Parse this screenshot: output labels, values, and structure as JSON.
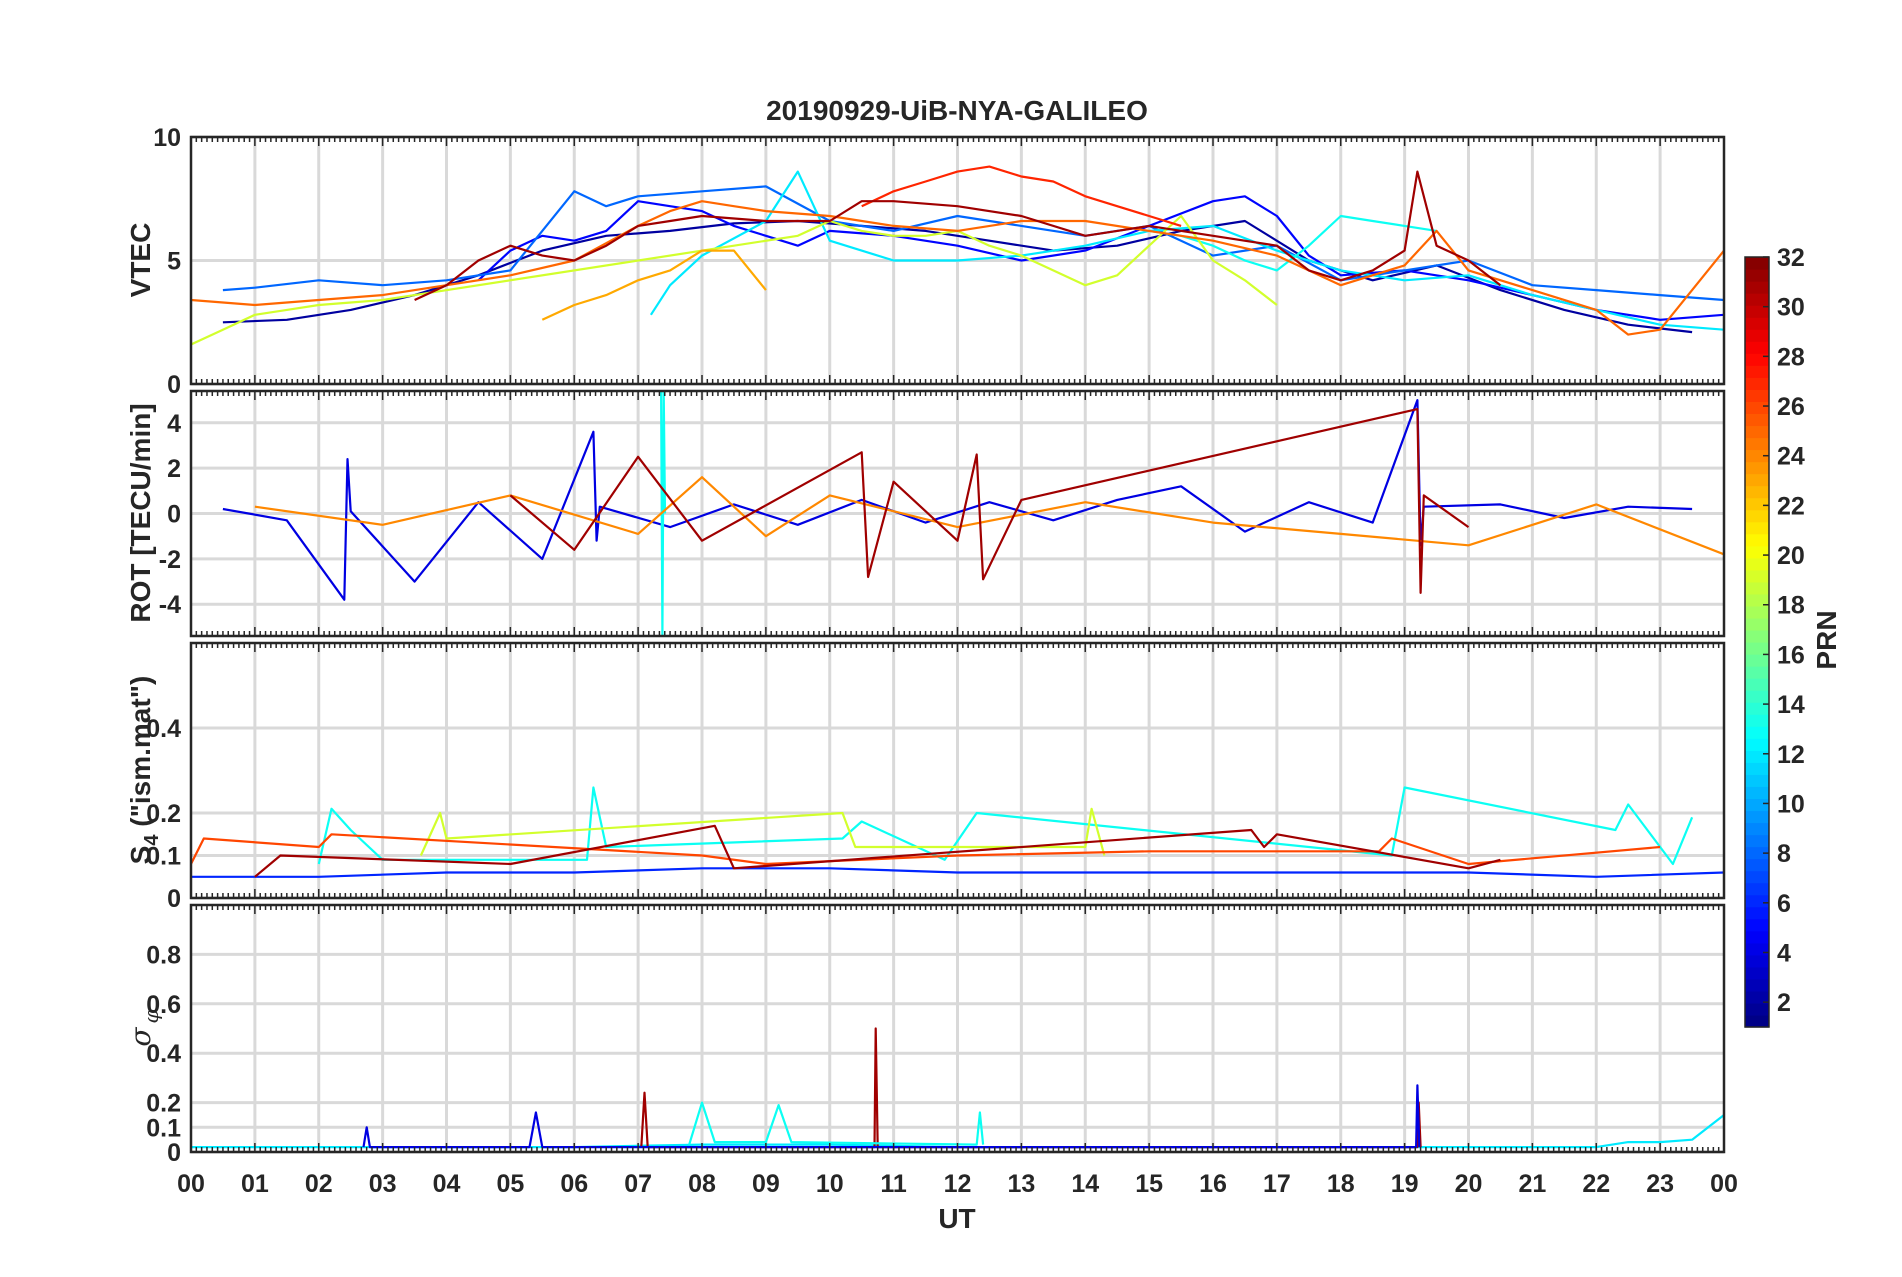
{
  "chart_data": {
    "type": "line",
    "title": "20190929-UiB-NYA-GALILEO",
    "xlabel": "UT",
    "xlim": [
      0,
      24
    ],
    "x_ticks": [
      "00",
      "01",
      "02",
      "03",
      "04",
      "05",
      "06",
      "07",
      "08",
      "09",
      "10",
      "11",
      "12",
      "13",
      "14",
      "15",
      "16",
      "17",
      "18",
      "19",
      "20",
      "21",
      "22",
      "23",
      "00"
    ],
    "grid": "on",
    "colorbar": {
      "label": "PRN",
      "range": [
        1,
        32
      ],
      "ticks": [
        "2",
        "4",
        "6",
        "8",
        "10",
        "12",
        "14",
        "16",
        "18",
        "20",
        "22",
        "24",
        "26",
        "28",
        "30",
        "32"
      ],
      "colormap": "jet",
      "placement": "right"
    },
    "panels": [
      {
        "name": "vtec",
        "ylabel": "VTEC",
        "ylim": [
          0,
          10
        ],
        "yticks": [
          "0",
          "5",
          "10"
        ],
        "series": [
          {
            "name": "PRN 2",
            "prn": 2,
            "x": [
              0.5,
              1.5,
              2.5,
              3.5,
              4.5,
              5.5,
              6.5,
              7.5,
              8.5,
              9.5,
              10.5,
              11.5,
              12.5,
              13.5,
              14.5,
              15.5,
              16.5,
              17.5,
              18.5,
              19.5,
              20.5,
              21.5,
              22.5,
              23.5
            ],
            "y": [
              2.5,
              2.6,
              3.0,
              3.6,
              4.4,
              5.4,
              6.0,
              6.2,
              6.5,
              6.6,
              6.4,
              6.2,
              5.8,
              5.4,
              5.6,
              6.2,
              6.6,
              5.0,
              4.2,
              4.8,
              3.8,
              3.0,
              2.4,
              2.1
            ]
          },
          {
            "name": "PRN 5",
            "prn": 5,
            "x": [
              4.5,
              5.0,
              5.5,
              6.0,
              6.5,
              7.0,
              7.5,
              8.0,
              8.5,
              9.0,
              9.5,
              10.0,
              11.0,
              12.0,
              13.0,
              14.0,
              15.0,
              16.0,
              16.5,
              17.0,
              17.5,
              18.0,
              19.0,
              20.0,
              21.0,
              22.0,
              23.0,
              24.0
            ],
            "y": [
              4.2,
              5.4,
              6.0,
              5.8,
              6.2,
              7.4,
              7.2,
              7.0,
              6.4,
              6.0,
              5.6,
              6.2,
              6.0,
              5.6,
              5.0,
              5.4,
              6.4,
              7.4,
              7.6,
              6.8,
              5.2,
              4.4,
              4.6,
              4.2,
              3.6,
              3.0,
              2.6,
              2.8
            ]
          },
          {
            "name": "PRN 8",
            "prn": 8,
            "x": [
              0.5,
              1.0,
              2.0,
              3.0,
              4.0,
              5.0,
              6.0,
              6.5,
              7.0,
              8.0,
              9.0,
              10.0,
              11.0,
              12.0,
              13.0,
              14.0,
              15.0,
              16.0,
              17.0,
              18.0,
              19.0,
              20.0,
              21.0,
              22.0,
              23.0,
              24.0
            ],
            "y": [
              3.8,
              3.9,
              4.2,
              4.0,
              4.2,
              4.6,
              7.8,
              7.2,
              7.6,
              7.8,
              8.0,
              6.6,
              6.2,
              6.8,
              6.4,
              6.0,
              6.4,
              5.2,
              5.6,
              4.2,
              4.6,
              5.0,
              4.0,
              3.8,
              3.6,
              3.4
            ]
          },
          {
            "name": "PRN 12",
            "prn": 12,
            "x": [
              7.2,
              7.5,
              8.0,
              9.0,
              9.5,
              10.0,
              11.0,
              12.0,
              13.0,
              14.0,
              15.0,
              16.0,
              17.0,
              18.0,
              19.0,
              20.0,
              21.0,
              22.0,
              23.0,
              24.0
            ],
            "y": [
              2.8,
              4.0,
              5.2,
              6.6,
              8.6,
              5.8,
              5.0,
              5.0,
              5.2,
              5.6,
              6.2,
              6.4,
              5.4,
              4.6,
              4.2,
              4.4,
              3.6,
              3.0,
              2.4,
              2.2
            ]
          },
          {
            "name": "PRN 13",
            "prn": 13,
            "x": [
              15.0,
              15.5,
              16.0,
              16.5,
              17.0,
              17.5,
              18.0,
              18.5,
              19.0,
              19.5
            ],
            "y": [
              6.2,
              6.0,
              5.6,
              5.0,
              4.6,
              5.6,
              6.8,
              6.6,
              6.4,
              6.2
            ]
          },
          {
            "name": "PRN 19",
            "prn": 19,
            "x": [
              0.0,
              0.5,
              1.0,
              1.5,
              2.0,
              2.5,
              3.0,
              3.5,
              9.5,
              10.0,
              10.5,
              11.0,
              11.5,
              12.0,
              12.5,
              13.0,
              14.0,
              14.5,
              15.5,
              16.0,
              16.5,
              17.0
            ],
            "y": [
              1.6,
              2.2,
              2.8,
              3.0,
              3.2,
              3.3,
              3.4,
              3.6,
              6.0,
              6.6,
              6.2,
              6.0,
              6.0,
              6.2,
              5.6,
              5.2,
              4.0,
              4.4,
              6.8,
              5.0,
              4.2,
              3.2
            ]
          },
          {
            "name": "PRN 23",
            "prn": 23,
            "x": [
              5.5,
              6.0,
              6.5,
              7.0,
              7.5,
              8.0,
              8.5,
              9.0
            ],
            "y": [
              2.6,
              3.2,
              3.6,
              4.2,
              4.6,
              5.4,
              5.4,
              3.8
            ]
          },
          {
            "name": "PRN 25",
            "prn": 25,
            "x": [
              0.0,
              1.0,
              2.0,
              3.0,
              4.0,
              5.0,
              6.0,
              7.0,
              7.5,
              8.0,
              8.5,
              9.0,
              10.0,
              11.0,
              12.0,
              13.0,
              14.0,
              15.0,
              16.0,
              17.0,
              18.0,
              19.0,
              19.5,
              20.0,
              21.0,
              22.0,
              22.5,
              23.0,
              24.0
            ],
            "y": [
              3.4,
              3.2,
              3.4,
              3.6,
              4.0,
              4.4,
              5.0,
              6.4,
              7.0,
              7.4,
              7.2,
              7.0,
              6.8,
              6.4,
              6.2,
              6.6,
              6.6,
              6.2,
              5.8,
              5.2,
              4.0,
              4.8,
              6.2,
              4.6,
              3.8,
              3.0,
              2.0,
              2.2,
              5.4
            ]
          },
          {
            "name": "PRN 27",
            "prn": 27,
            "x": [
              10.5,
              11.0,
              11.5,
              12.0,
              12.5,
              13.0,
              13.5,
              14.0,
              14.5,
              15.0,
              15.5
            ],
            "y": [
              7.2,
              7.8,
              8.2,
              8.6,
              8.8,
              8.4,
              8.2,
              7.6,
              7.2,
              6.8,
              6.4
            ]
          },
          {
            "name": "PRN 31",
            "prn": 31,
            "x": [
              3.5,
              4.0,
              4.5,
              5.0,
              5.5,
              6.0,
              6.5,
              7.0,
              7.5,
              8.0,
              9.0,
              10.0,
              10.5,
              11.0,
              12.0,
              13.0,
              14.0,
              14.5,
              15.0,
              16.0,
              17.0,
              17.5,
              18.0,
              18.5,
              19.0,
              19.2,
              19.5,
              20.0,
              20.5
            ],
            "y": [
              3.4,
              4.0,
              5.0,
              5.6,
              5.2,
              5.0,
              5.6,
              6.4,
              6.6,
              6.8,
              6.6,
              6.6,
              7.4,
              7.4,
              7.2,
              6.8,
              6.0,
              6.2,
              6.4,
              6.0,
              5.6,
              4.6,
              4.2,
              4.6,
              5.4,
              8.6,
              5.6,
              5.0,
              4.0
            ]
          }
        ]
      },
      {
        "name": "rot",
        "ylabel": "ROT [TECU/min]",
        "ylim": [
          -5.4,
          5.4
        ],
        "yticks": [
          "-4",
          "-2",
          "0",
          "2",
          "4"
        ],
        "series": [
          {
            "name": "ROT PRN 4",
            "prn": 4,
            "x": [
              0.5,
              1.5,
              2.4,
              2.45,
              2.5,
              3.5,
              4.5,
              5.5,
              6.3,
              6.35,
              6.4,
              7.5,
              8.5,
              9.5,
              10.5,
              11.5,
              12.5,
              13.5,
              14.5,
              15.5,
              16.5,
              17.5,
              18.5,
              19.2,
              19.25,
              19.3,
              20.5,
              21.5,
              22.5,
              23.5
            ],
            "y": [
              0.2,
              -0.3,
              -3.8,
              2.4,
              0.1,
              -3.0,
              0.5,
              -2.0,
              3.6,
              -1.2,
              0.3,
              -0.6,
              0.4,
              -0.5,
              0.6,
              -0.4,
              0.5,
              -0.3,
              0.6,
              1.2,
              -0.8,
              0.5,
              -0.4,
              5.0,
              -1.4,
              0.3,
              0.4,
              -0.2,
              0.3,
              0.2
            ]
          },
          {
            "name": "ROT PRN 13",
            "prn": 13,
            "x": [
              7.36,
              7.38,
              7.4,
              7.42
            ],
            "y": [
              5.4,
              -5.4,
              5.4,
              0.0
            ]
          },
          {
            "name": "ROT PRN 24",
            "prn": 24,
            "x": [
              1.0,
              3.0,
              5.0,
              7.0,
              8.0,
              9.0,
              10.0,
              12.0,
              14.0,
              16.0,
              18.0,
              20.0,
              22.0,
              24.0
            ],
            "y": [
              0.3,
              -0.5,
              0.8,
              -0.9,
              1.6,
              -1.0,
              0.8,
              -0.6,
              0.5,
              -0.4,
              -0.9,
              -1.4,
              0.4,
              -1.8
            ]
          },
          {
            "name": "ROT PRN 31",
            "prn": 31,
            "x": [
              5.0,
              6.0,
              7.0,
              8.0,
              10.5,
              10.6,
              11.0,
              12.0,
              12.3,
              12.4,
              13.0,
              19.2,
              19.25,
              19.3,
              20.0
            ],
            "y": [
              0.8,
              -1.6,
              2.5,
              -1.2,
              2.7,
              -2.8,
              1.4,
              -1.2,
              2.6,
              -2.9,
              0.6,
              4.6,
              -3.5,
              0.8,
              -0.6
            ]
          }
        ]
      },
      {
        "name": "s4",
        "ylabel": "S4 (\"ism.mat\")",
        "ylabel_main": "S",
        "ylabel_sub": "4",
        "ylabel_rest": " (\"ism.mat\")",
        "ylim": [
          0,
          0.6
        ],
        "yticks": [
          "0",
          "0.1",
          "0.2",
          "0.4"
        ],
        "series": [
          {
            "name": "S4 base",
            "prn": 6,
            "x": [
              0,
              2,
              4,
              6,
              8,
              10,
              12,
              14,
              16,
              18,
              20,
              22,
              24
            ],
            "y": [
              0.05,
              0.05,
              0.06,
              0.06,
              0.07,
              0.07,
              0.06,
              0.06,
              0.06,
              0.06,
              0.06,
              0.05,
              0.06
            ]
          },
          {
            "name": "S4 PRN 13",
            "prn": 13,
            "x": [
              2.0,
              2.2,
              2.5,
              3.0,
              6.2,
              6.3,
              6.5,
              10.2,
              10.5,
              11.8,
              12.3,
              18.8,
              19.0,
              22.3,
              22.5,
              23.2,
              23.5
            ],
            "y": [
              0.08,
              0.21,
              0.16,
              0.09,
              0.09,
              0.26,
              0.12,
              0.14,
              0.18,
              0.09,
              0.2,
              0.1,
              0.26,
              0.16,
              0.22,
              0.08,
              0.19
            ]
          },
          {
            "name": "S4 PRN 19",
            "prn": 19,
            "x": [
              3.6,
              3.9,
              4.0,
              10.2,
              10.4,
              14.0,
              14.1,
              14.3
            ],
            "y": [
              0.1,
              0.2,
              0.14,
              0.2,
              0.12,
              0.12,
              0.21,
              0.1
            ]
          },
          {
            "name": "S4 PRN 26",
            "prn": 26,
            "x": [
              0.0,
              0.2,
              2.0,
              2.2,
              8.0,
              9.0,
              12.0,
              15.0,
              18.6,
              18.8,
              20.0,
              23.0
            ],
            "y": [
              0.08,
              0.14,
              0.12,
              0.15,
              0.1,
              0.08,
              0.1,
              0.11,
              0.11,
              0.14,
              0.08,
              0.12
            ]
          },
          {
            "name": "S4 PRN 31",
            "prn": 31,
            "x": [
              1.0,
              1.4,
              5.0,
              8.2,
              8.5,
              16.6,
              16.8,
              17.0,
              20.0,
              20.5
            ],
            "y": [
              0.05,
              0.1,
              0.08,
              0.17,
              0.07,
              0.16,
              0.12,
              0.15,
              0.07,
              0.09
            ]
          }
        ]
      },
      {
        "name": "sigma",
        "ylabel": "σφ",
        "ylabel_main": "σ",
        "ylabel_sub": "φ",
        "ylim": [
          0,
          1
        ],
        "yticks": [
          "0",
          "0.1",
          "0.2",
          "0.4",
          "0.6",
          "0.8"
        ],
        "series": [
          {
            "name": "sigma base",
            "prn": 12,
            "x": [
              0,
              2,
              4,
              6,
              8,
              10,
              12,
              14,
              16,
              18,
              20,
              22,
              22.5,
              23,
              23.5,
              24
            ],
            "y": [
              0.02,
              0.02,
              0.02,
              0.02,
              0.03,
              0.03,
              0.02,
              0.02,
              0.02,
              0.02,
              0.02,
              0.02,
              0.04,
              0.04,
              0.05,
              0.15
            ]
          },
          {
            "name": "sigma PRN 31",
            "prn": 31,
            "x": [
              7.05,
              7.1,
              7.15,
              10.7,
              10.72,
              10.75,
              19.2,
              19.22,
              19.25
            ],
            "y": [
              0.02,
              0.24,
              0.02,
              0.02,
              0.5,
              0.02,
              0.02,
              0.2,
              0.02
            ]
          },
          {
            "name": "sigma PRN 4",
            "prn": 4,
            "x": [
              2.7,
              2.75,
              2.8,
              5.3,
              5.4,
              5.5,
              19.18,
              19.2,
              19.23
            ],
            "y": [
              0.02,
              0.1,
              0.02,
              0.02,
              0.16,
              0.02,
              0.02,
              0.27,
              0.02
            ]
          },
          {
            "name": "sigma PRN 13",
            "prn": 13,
            "x": [
              7.8,
              8.0,
              8.2,
              9.0,
              9.2,
              9.4,
              12.3,
              12.35,
              12.4
            ],
            "y": [
              0.03,
              0.2,
              0.04,
              0.04,
              0.19,
              0.04,
              0.03,
              0.16,
              0.03
            ]
          }
        ]
      }
    ]
  }
}
